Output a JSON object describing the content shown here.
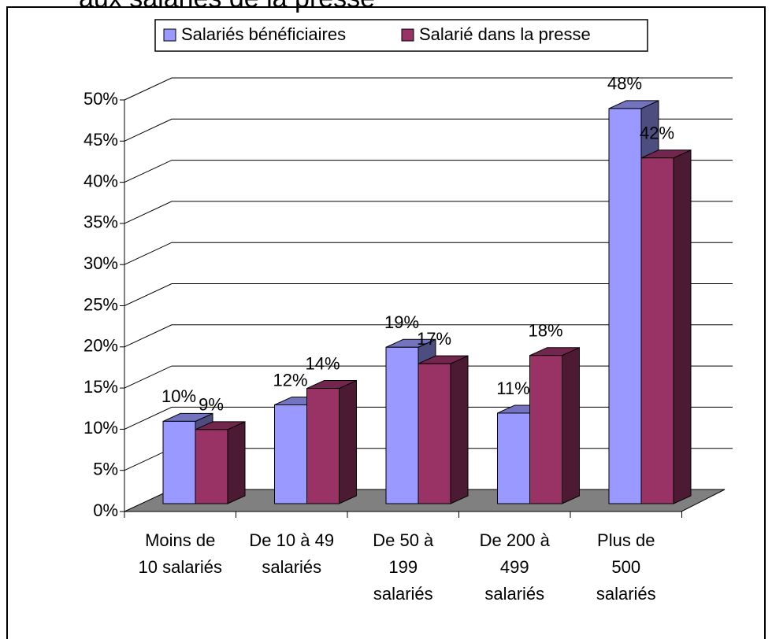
{
  "chart_data": {
    "type": "bar3d",
    "title": "aux salariés de la presse",
    "categories": [
      [
        "Moins de",
        "10 salariés"
      ],
      [
        "De 10 à 49",
        "salariés"
      ],
      [
        "De 50 à",
        "199",
        "salariés"
      ],
      [
        "De 200 à",
        "499",
        "salariés"
      ],
      [
        "Plus de",
        "500",
        "salariés"
      ]
    ],
    "series": [
      {
        "name": "Salariés bénéficiaires",
        "color": "#9999ff",
        "values": [
          10,
          12,
          19,
          11,
          48
        ],
        "value_labels": [
          "10%",
          "12%",
          "19%",
          "11%",
          "48%"
        ]
      },
      {
        "name": "Salarié dans la presse",
        "color": "#993366",
        "values": [
          9,
          14,
          17,
          18,
          42
        ],
        "value_labels": [
          "9%",
          "14%",
          "17%",
          "18%",
          "42%"
        ]
      }
    ],
    "ylim": [
      0,
      50
    ],
    "yticks": [
      {
        "value": 0,
        "label": "0%"
      },
      {
        "value": 5,
        "label": "5%"
      },
      {
        "value": 10,
        "label": "10%"
      },
      {
        "value": 15,
        "label": "15%"
      },
      {
        "value": 20,
        "label": "20%"
      },
      {
        "value": 25,
        "label": "25%"
      },
      {
        "value": 30,
        "label": "30%"
      },
      {
        "value": 35,
        "label": "35%"
      },
      {
        "value": 40,
        "label": "40%"
      },
      {
        "value": 45,
        "label": "45%"
      },
      {
        "value": 50,
        "label": "50%"
      }
    ],
    "grid": true,
    "legend": "top"
  }
}
